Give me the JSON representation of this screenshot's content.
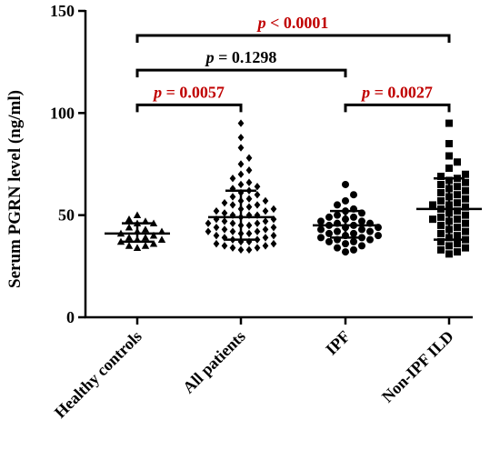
{
  "chart_data": {
    "type": "scatter",
    "title": "",
    "xlabel": "",
    "ylabel": "Serum PGRN level (ng/ml)",
    "ylim": [
      0,
      150
    ],
    "yticks": [
      0,
      50,
      100,
      150
    ],
    "grid": false,
    "categories": [
      "Healthy controls",
      "All patients",
      "IPF",
      "Non-IPF ILD"
    ],
    "series": [
      {
        "category": "Healthy controls",
        "marker": "triangle",
        "values": [
          50,
          48,
          47,
          46,
          46,
          44,
          43,
          42,
          41,
          40,
          39,
          39,
          38,
          37,
          36,
          35,
          35,
          34,
          38,
          42
        ],
        "mean": 41,
        "sd_low": 37,
        "sd_high": 46
      },
      {
        "category": "All patients",
        "marker": "diamond",
        "values": [
          95,
          88,
          83,
          78,
          75,
          72,
          70,
          68,
          66,
          65,
          64,
          63,
          62,
          61,
          60,
          59,
          58,
          57,
          56,
          55,
          55,
          54,
          53,
          52,
          52,
          51,
          50,
          50,
          49,
          48,
          48,
          47,
          46,
          46,
          45,
          45,
          44,
          44,
          43,
          43,
          42,
          42,
          41,
          41,
          40,
          40,
          39,
          39,
          38,
          38,
          37,
          37,
          36,
          36,
          35,
          35,
          34,
          34,
          33,
          33,
          42,
          46,
          50,
          53,
          57,
          47
        ],
        "mean": 49,
        "sd_low": 38,
        "sd_high": 62
      },
      {
        "category": "IPF",
        "marker": "circle",
        "values": [
          65,
          60,
          57,
          55,
          53,
          52,
          51,
          50,
          49,
          48,
          47,
          47,
          46,
          45,
          45,
          44,
          44,
          43,
          43,
          42,
          42,
          41,
          41,
          40,
          40,
          39,
          39,
          38,
          38,
          37,
          37,
          36,
          35,
          34,
          33,
          32,
          46,
          49
        ],
        "mean": 45,
        "sd_low": 39,
        "sd_high": 52
      },
      {
        "category": "Non-IPF ILD",
        "marker": "square",
        "values": [
          95,
          85,
          79,
          76,
          73,
          70,
          69,
          68,
          67,
          66,
          65,
          64,
          63,
          62,
          60,
          59,
          58,
          57,
          56,
          55,
          54,
          53,
          52,
          51,
          50,
          49,
          48,
          47,
          46,
          45,
          44,
          43,
          42,
          41,
          40,
          39,
          38,
          37,
          36,
          35,
          34,
          33,
          32,
          31,
          48,
          55,
          61
        ],
        "mean": 53,
        "sd_low": 38,
        "sd_high": 68
      }
    ],
    "annotations": [
      {
        "italic": "p",
        "text": " < 0.0001",
        "from": 0,
        "to": 3,
        "y": 138,
        "color": "#c00000"
      },
      {
        "italic": "p",
        "text": " = 0.1298",
        "from": 0,
        "to": 2,
        "y": 121,
        "color": "#000000"
      },
      {
        "italic": "p",
        "text": " = 0.0057",
        "from": 0,
        "to": 1,
        "y": 104,
        "color": "#c00000"
      },
      {
        "italic": "p",
        "text": " = 0.0027",
        "from": 2,
        "to": 3,
        "y": 104,
        "color": "#c00000"
      }
    ]
  }
}
